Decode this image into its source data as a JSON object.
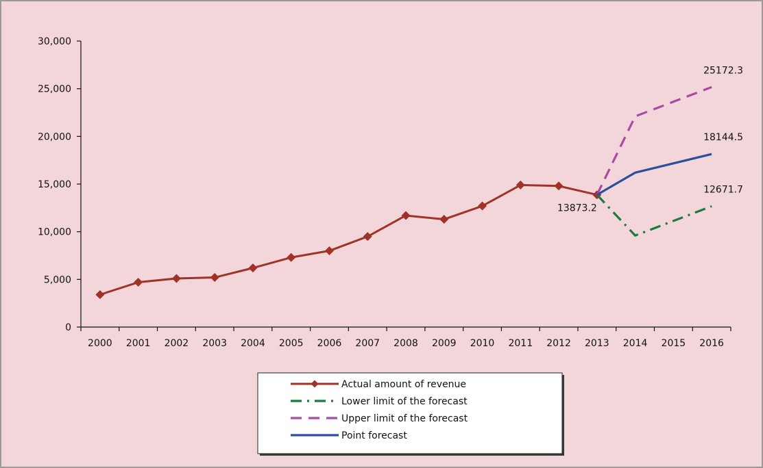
{
  "chart_data": {
    "type": "line",
    "categories": [
      "2000",
      "2001",
      "2002",
      "2003",
      "2004",
      "2005",
      "2006",
      "2007",
      "2008",
      "2009",
      "2010",
      "2011",
      "2012",
      "2013",
      "2014",
      "2015",
      "2016"
    ],
    "ylim": [
      0,
      30000
    ],
    "yticks": [
      0,
      5000,
      10000,
      15000,
      20000,
      25000,
      30000
    ],
    "ytick_labels": [
      "0",
      "5,000",
      "10,000",
      "15,000",
      "20,000",
      "25,000",
      "30,000"
    ],
    "grid": false,
    "legend_position": "bottom-center",
    "series": [
      {
        "name": "Actual amount of revenue",
        "color": "#a0322a",
        "style": "solid-diamond",
        "x": [
          "2000",
          "2001",
          "2002",
          "2003",
          "2004",
          "2005",
          "2006",
          "2007",
          "2008",
          "2009",
          "2010",
          "2011",
          "2012",
          "2013"
        ],
        "values": [
          3400,
          4700,
          5100,
          5200,
          6200,
          7300,
          8000,
          9500,
          11700,
          11300,
          12700,
          14900,
          14800,
          13873.2
        ]
      },
      {
        "name": "Lower limit of the forecast",
        "color": "#1e7a3a",
        "style": "dash-dot",
        "x": [
          "2013",
          "2014",
          "2016"
        ],
        "values": [
          13873.2,
          9600,
          12671.7
        ]
      },
      {
        "name": "Upper limit of the forecast",
        "color": "#a94aa6",
        "style": "dash",
        "x": [
          "2013",
          "2014",
          "2016"
        ],
        "values": [
          13873.2,
          22100,
          25172.3
        ]
      },
      {
        "name": "Point forecast",
        "color": "#2a4fa0",
        "style": "solid",
        "x": [
          "2013",
          "2014",
          "2016"
        ],
        "values": [
          13873.2,
          16200,
          18144.5
        ]
      }
    ],
    "annotations": [
      {
        "text": "13873.2",
        "x": "2013",
        "y": 13873.2,
        "anchor": "end",
        "dy": 24
      },
      {
        "text": "25172.3",
        "x": "2016",
        "y": 25172.3,
        "anchor": "start",
        "dy": -20
      },
      {
        "text": "18144.5",
        "x": "2016",
        "y": 18144.5,
        "anchor": "start",
        "dy": -20
      },
      {
        "text": "12671.7",
        "x": "2016",
        "y": 12671.7,
        "anchor": "start",
        "dy": -20
      }
    ]
  }
}
